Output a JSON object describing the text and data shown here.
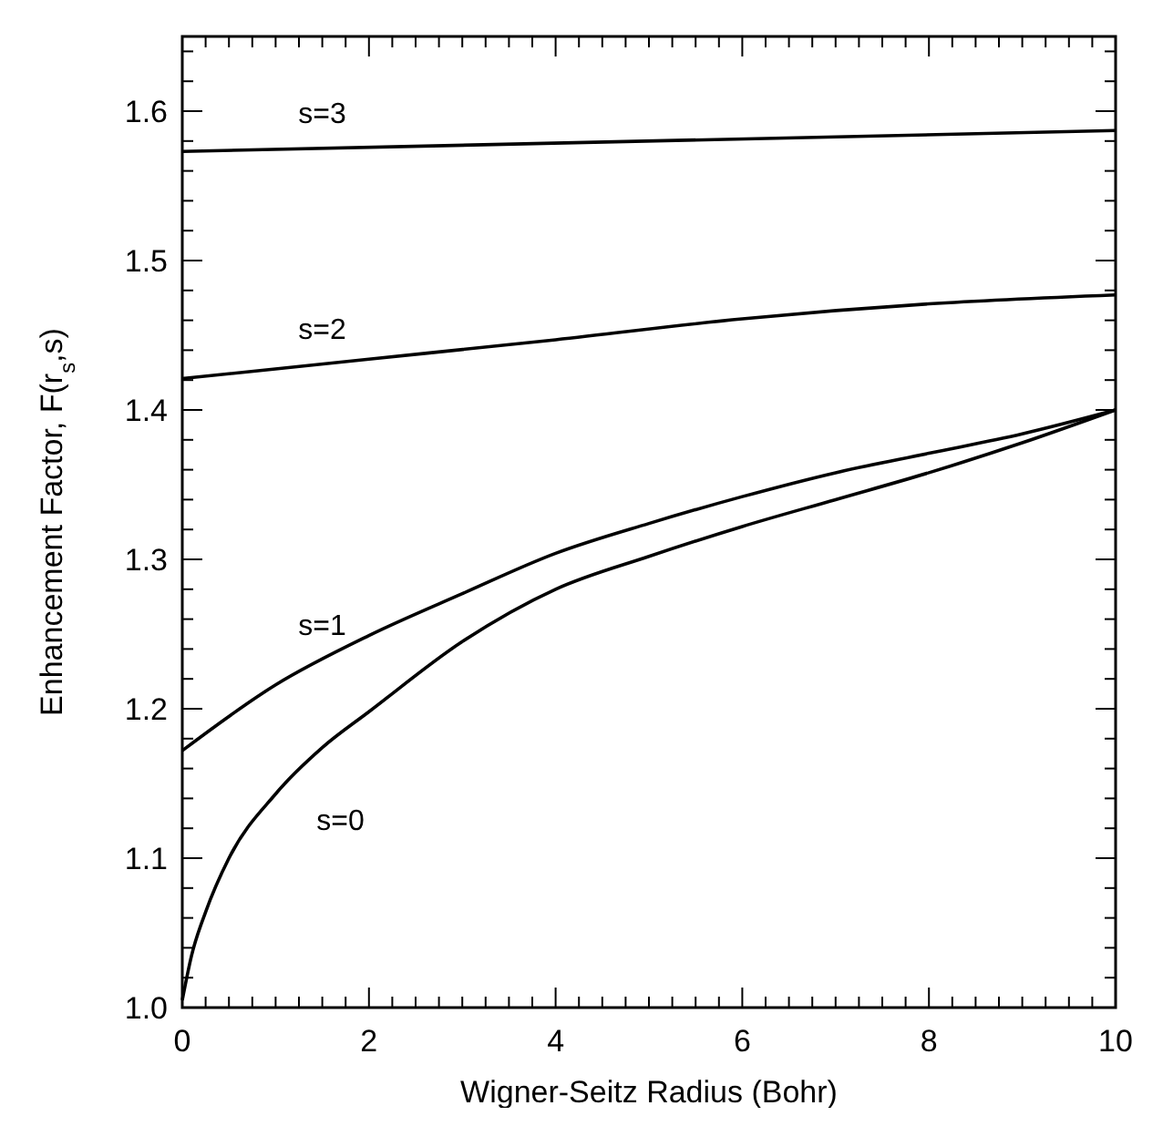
{
  "chart_data": {
    "type": "line",
    "xlabel": "Wigner-Seitz Radius (Bohr)",
    "ylabel": "Enhancement Factor, F(r$_{s}$,s)",
    "xlim": [
      0,
      10
    ],
    "ylim": [
      1.0,
      1.65
    ],
    "marker": "none",
    "line_style": "solid",
    "grid": false,
    "xticks": [
      0,
      {
        "value": 0.25,
        "label": null
      },
      {
        "value": 0.5,
        "label": null
      },
      {
        "value": 0.75,
        "label": null
      },
      {
        "value": 1,
        "label": null
      },
      {
        "value": 1.25,
        "label": null
      },
      {
        "value": 1.5,
        "label": null
      },
      {
        "value": 1.75,
        "label": null
      },
      2,
      {
        "value": 2.25,
        "label": null
      },
      {
        "value": 2.5,
        "label": null
      },
      {
        "value": 2.75,
        "label": null
      },
      {
        "value": 3,
        "label": null
      },
      {
        "value": 3.25,
        "label": null
      },
      {
        "value": 3.5,
        "label": null
      },
      {
        "value": 3.75,
        "label": null
      },
      4,
      {
        "value": 4.25,
        "label": null
      },
      {
        "value": 4.5,
        "label": null
      },
      {
        "value": 4.75,
        "label": null
      },
      {
        "value": 5,
        "label": null
      },
      {
        "value": 5.25,
        "label": null
      },
      {
        "value": 5.5,
        "label": null
      },
      {
        "value": 5.75,
        "label": null
      },
      6,
      {
        "value": 6.25,
        "label": null
      },
      {
        "value": 6.5,
        "label": null
      },
      {
        "value": 6.75,
        "label": null
      },
      {
        "value": 7,
        "label": null
      },
      {
        "value": 7.25,
        "label": null
      },
      {
        "value": 7.5,
        "label": null
      },
      {
        "value": 7.75,
        "label": null
      },
      8,
      {
        "value": 8.25,
        "label": null
      },
      {
        "value": 8.5,
        "label": null
      },
      {
        "value": 8.75,
        "label": null
      },
      {
        "value": 9,
        "label": null
      },
      {
        "value": 9.25,
        "label": null
      },
      {
        "value": 9.5,
        "label": null
      },
      {
        "value": 9.75,
        "label": null
      },
      10
    ],
    "yticks": [
      {
        "value": 1.0,
        "label": "1.0"
      },
      {
        "value": 1.02,
        "label": null
      },
      {
        "value": 1.04,
        "label": null
      },
      {
        "value": 1.06,
        "label": null
      },
      {
        "value": 1.08,
        "label": null
      },
      1.1,
      {
        "value": 1.12,
        "label": null
      },
      {
        "value": 1.14,
        "label": null
      },
      {
        "value": 1.16,
        "label": null
      },
      {
        "value": 1.18,
        "label": null
      },
      1.2,
      {
        "value": 1.22,
        "label": null
      },
      {
        "value": 1.24,
        "label": null
      },
      {
        "value": 1.26,
        "label": null
      },
      {
        "value": 1.28,
        "label": null
      },
      1.3,
      {
        "value": 1.32,
        "label": null
      },
      {
        "value": 1.34,
        "label": null
      },
      {
        "value": 1.36,
        "label": null
      },
      {
        "value": 1.38,
        "label": null
      },
      1.4,
      {
        "value": 1.42,
        "label": null
      },
      {
        "value": 1.44,
        "label": null
      },
      {
        "value": 1.46,
        "label": null
      },
      {
        "value": 1.48,
        "label": null
      },
      1.5,
      {
        "value": 1.52,
        "label": null
      },
      {
        "value": 1.54,
        "label": null
      },
      {
        "value": 1.56,
        "label": null
      },
      {
        "value": 1.58,
        "label": null
      },
      1.6,
      {
        "value": 1.62,
        "label": null
      },
      {
        "value": 1.64,
        "label": null
      }
    ],
    "x": [
      0,
      0.1,
      0.25,
      0.5,
      1,
      1.5,
      2,
      3,
      4,
      5,
      6,
      7,
      8,
      9,
      10
    ],
    "series": [
      {
        "name": "s=0",
        "color": "#000000",
        "values": [
          1.005,
          1.035,
          1.064,
          1.1,
          1.143,
          1.174,
          1.198,
          1.245,
          1.28,
          1.302,
          1.322,
          1.34,
          1.358,
          1.378,
          1.4
        ]
      },
      {
        "name": "s=1",
        "color": "#000000",
        "x": [
          0,
          1,
          2,
          3,
          4,
          5,
          6,
          7,
          8,
          9,
          10
        ],
        "values": [
          1.172,
          1.216,
          1.249,
          1.277,
          1.304,
          1.324,
          1.342,
          1.358,
          1.371,
          1.384,
          1.4
        ]
      },
      {
        "name": "s=2",
        "color": "#000000",
        "x": [
          0,
          2,
          4,
          6,
          8,
          10
        ],
        "values": [
          1.421,
          1.434,
          1.447,
          1.461,
          1.471,
          1.477
        ]
      },
      {
        "name": "s=3",
        "color": "#000000",
        "x": [
          0,
          10
        ],
        "values": [
          1.573,
          1.587
        ]
      }
    ]
  }
}
